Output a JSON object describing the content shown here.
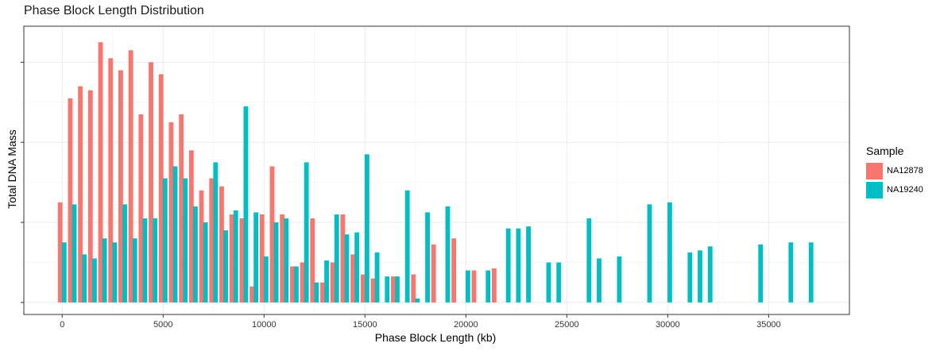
{
  "chart_data": {
    "type": "bar",
    "title": "Phase Block Length Distribution",
    "xlabel": "Phase Block Length (kb)",
    "ylabel": "Total DNA Mass",
    "xlim": [
      -1900,
      39000
    ],
    "ylim": [
      -0.3,
      6.9
    ],
    "xticks": [
      0,
      5000,
      10000,
      15000,
      20000,
      25000,
      30000,
      35000
    ],
    "xtick_labels": [
      "0",
      "5000",
      "10000",
      "15000",
      "20000",
      "25000",
      "30000",
      "35000"
    ],
    "yticks": [
      0,
      2,
      4,
      6
    ],
    "ytick_labels": [
      "",
      "",
      "",
      ""
    ],
    "grid": true,
    "legend": {
      "title": "Sample",
      "position": "right"
    },
    "bar_width_kb": 230,
    "series": [
      {
        "name": "NA12878",
        "color": "#F8766D",
        "x": [
          -100,
          400,
          900,
          1400,
          1900,
          2400,
          2900,
          3400,
          3900,
          4400,
          4900,
          5400,
          5900,
          6400,
          6900,
          7400,
          7900,
          8400,
          8900,
          9400,
          9900,
          10400,
          10900,
          11400,
          11900,
          12400,
          12900,
          13400,
          13900,
          14400,
          14900,
          15400,
          16400,
          17400,
          18400,
          19400,
          20400,
          21400
        ],
        "values": [
          2.5,
          5.1,
          5.4,
          5.3,
          6.5,
          6.1,
          5.8,
          6.3,
          4.7,
          6.0,
          5.7,
          4.5,
          4.7,
          3.8,
          2.8,
          3.1,
          2.9,
          2.2,
          2.1,
          0.4,
          2.2,
          3.4,
          2.2,
          0.9,
          1.0,
          2.1,
          0.5,
          1.0,
          2.2,
          1.2,
          0.7,
          0.6,
          0.65,
          0.7,
          1.45,
          1.6,
          0.8,
          0.85
        ]
      },
      {
        "name": "NA19240",
        "color": "#00BFC4",
        "x": [
          100,
          600,
          1100,
          1600,
          2100,
          2600,
          3100,
          3600,
          4100,
          4600,
          5100,
          5600,
          6100,
          6600,
          7100,
          7600,
          8100,
          8600,
          9100,
          9600,
          10100,
          10600,
          11100,
          11600,
          12100,
          12600,
          13100,
          13600,
          14100,
          14600,
          15100,
          15600,
          16100,
          16600,
          17100,
          17600,
          18100,
          19100,
          20100,
          21100,
          22100,
          22600,
          23100,
          24100,
          24600,
          26100,
          26600,
          27600,
          29100,
          30100,
          31100,
          31600,
          32100,
          34600,
          36100,
          37100
        ],
        "values": [
          1.5,
          2.45,
          1.2,
          1.1,
          1.6,
          1.5,
          2.45,
          1.6,
          2.1,
          2.1,
          3.1,
          3.4,
          3.1,
          2.4,
          2.0,
          3.5,
          1.8,
          2.3,
          4.9,
          2.25,
          1.15,
          2.0,
          2.1,
          0.9,
          3.5,
          0.5,
          1.05,
          2.2,
          1.7,
          1.75,
          3.7,
          1.25,
          0.65,
          0.65,
          2.8,
          0.1,
          2.25,
          2.4,
          0.8,
          0.8,
          1.85,
          1.85,
          1.9,
          1.0,
          1.0,
          2.1,
          1.1,
          1.15,
          2.45,
          2.5,
          1.25,
          1.3,
          1.4,
          1.45,
          1.5,
          1.5
        ]
      }
    ]
  }
}
